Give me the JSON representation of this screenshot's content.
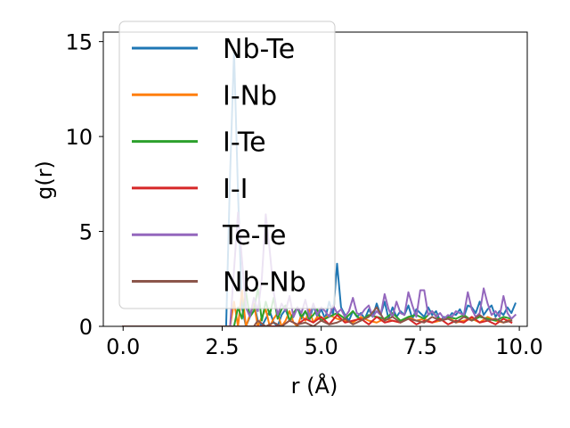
{
  "chart_data": {
    "type": "line",
    "title": "",
    "xlabel": "r (Å)",
    "ylabel": "g(r)",
    "xlim": [
      -0.5,
      10.2
    ],
    "ylim": [
      0,
      15.5
    ],
    "xticks": [
      0.0,
      2.5,
      5.0,
      7.5,
      10.0
    ],
    "xtick_labels": [
      "0.0",
      "2.5",
      "5.0",
      "7.5",
      "10.0"
    ],
    "yticks": [
      0,
      5,
      10,
      15
    ],
    "ytick_labels": [
      "0",
      "5",
      "10",
      "15"
    ],
    "grid": false,
    "legend_position": "upper-left",
    "series": [
      {
        "name": "Nb-Te",
        "color": "#1f77b4",
        "x": [
          0.0,
          2.6,
          2.7,
          2.8,
          2.9,
          3.0,
          3.1,
          3.2,
          3.3,
          3.4,
          3.5,
          3.6,
          3.7,
          3.8,
          3.9,
          4.0,
          4.1,
          4.2,
          4.3,
          4.4,
          4.5,
          4.6,
          4.7,
          4.8,
          4.9,
          5.0,
          5.1,
          5.2,
          5.3,
          5.4,
          5.5,
          5.6,
          5.7,
          5.8,
          5.9,
          6.0,
          6.1,
          6.2,
          6.3,
          6.4,
          6.5,
          6.6,
          6.7,
          6.8,
          6.9,
          7.0,
          7.1,
          7.2,
          7.3,
          7.4,
          7.5,
          7.6,
          7.7,
          7.8,
          7.9,
          8.0,
          8.1,
          8.2,
          8.3,
          8.4,
          8.5,
          8.6,
          8.7,
          8.8,
          8.9,
          9.0,
          9.1,
          9.2,
          9.3,
          9.4,
          9.5,
          9.6,
          9.7,
          9.8,
          9.9
        ],
        "y": [
          0.0,
          0.0,
          8.0,
          14.5,
          7.0,
          1.0,
          0.0,
          0.5,
          1.2,
          0.3,
          0.0,
          0.4,
          0.8,
          0.2,
          0.0,
          0.6,
          0.9,
          0.3,
          0.5,
          1.0,
          0.4,
          0.8,
          0.3,
          1.1,
          0.5,
          0.9,
          0.4,
          1.3,
          0.6,
          3.3,
          1.0,
          0.6,
          0.3,
          0.8,
          0.5,
          0.7,
          0.4,
          0.9,
          0.5,
          1.2,
          0.6,
          1.3,
          0.4,
          1.0,
          0.5,
          0.8,
          0.6,
          1.1,
          0.4,
          0.9,
          0.7,
          0.5,
          1.0,
          0.6,
          0.8,
          0.3,
          0.5,
          0.4,
          0.7,
          0.6,
          0.9,
          0.5,
          1.1,
          1.0,
          0.7,
          1.3,
          0.6,
          0.9,
          1.1,
          0.5,
          0.8,
          0.6,
          1.0,
          0.7,
          1.2
        ]
      },
      {
        "name": "I-Nb",
        "color": "#ff7f0e",
        "x": [
          0.0,
          2.7,
          2.8,
          2.9,
          3.0,
          3.1,
          3.2,
          3.3,
          3.4,
          3.5,
          3.6,
          3.7,
          3.8,
          3.9,
          4.0,
          4.1,
          4.2,
          4.3,
          4.4,
          4.5,
          4.6,
          4.7,
          4.8,
          4.9,
          5.0,
          5.2,
          5.4,
          5.6,
          5.8,
          6.0,
          6.2,
          6.4,
          6.6,
          6.8,
          7.0,
          7.2,
          7.4,
          7.6,
          7.8,
          8.0,
          8.2,
          8.4,
          8.6,
          8.8,
          9.0,
          9.2,
          9.4,
          9.6,
          9.8
        ],
        "y": [
          0.0,
          0.0,
          1.3,
          0.0,
          1.9,
          0.0,
          0.6,
          1.2,
          0.0,
          0.5,
          0.9,
          0.0,
          0.4,
          0.7,
          0.0,
          0.3,
          0.8,
          0.2,
          0.0,
          0.6,
          0.3,
          0.9,
          0.2,
          0.5,
          0.3,
          0.6,
          0.4,
          0.3,
          0.2,
          0.5,
          0.3,
          0.2,
          0.4,
          0.3,
          0.2,
          0.5,
          0.3,
          0.4,
          0.2,
          0.3,
          0.5,
          0.2,
          0.3,
          0.4,
          0.2,
          0.5,
          0.3,
          0.2,
          0.4
        ]
      },
      {
        "name": "I-Te",
        "color": "#2ca02c",
        "x": [
          0.0,
          2.8,
          2.9,
          3.0,
          3.1,
          3.2,
          3.3,
          3.4,
          3.5,
          3.6,
          3.7,
          3.8,
          3.9,
          4.0,
          4.1,
          4.2,
          4.3,
          4.4,
          4.5,
          4.6,
          4.7,
          4.8,
          4.9,
          5.0,
          5.2,
          5.4,
          5.6,
          5.8,
          6.0,
          6.2,
          6.4,
          6.6,
          6.8,
          7.0,
          7.2,
          7.4,
          7.6,
          7.8,
          8.0,
          8.2,
          8.4,
          8.6,
          8.8,
          9.0,
          9.2,
          9.4,
          9.6,
          9.8
        ],
        "y": [
          0.0,
          0.0,
          1.0,
          0.4,
          1.8,
          0.5,
          0.8,
          2.0,
          0.3,
          1.3,
          0.6,
          1.5,
          0.4,
          0.9,
          1.1,
          0.3,
          0.7,
          1.0,
          0.5,
          0.8,
          0.4,
          0.6,
          0.9,
          0.3,
          0.5,
          0.7,
          0.4,
          0.8,
          0.3,
          0.6,
          0.5,
          0.4,
          0.7,
          0.3,
          0.5,
          0.6,
          0.4,
          0.8,
          0.3,
          0.5,
          0.4,
          0.6,
          0.3,
          0.5,
          0.4,
          0.3,
          0.5,
          0.4
        ]
      },
      {
        "name": "I-I",
        "color": "#d62728",
        "x": [
          0.0,
          4.0,
          4.2,
          4.4,
          4.6,
          4.8,
          5.0,
          5.2,
          5.4,
          5.6,
          5.8,
          6.0,
          6.2,
          6.4,
          6.6,
          6.8,
          7.0,
          7.2,
          7.4,
          7.6,
          7.8,
          8.0,
          8.2,
          8.4,
          8.6,
          8.8,
          9.0,
          9.2,
          9.4,
          9.6,
          9.8
        ],
        "y": [
          0.0,
          0.0,
          0.3,
          0.1,
          0.4,
          0.2,
          0.5,
          0.1,
          0.6,
          0.2,
          0.3,
          0.4,
          0.1,
          0.5,
          0.2,
          0.3,
          0.2,
          0.4,
          0.1,
          0.3,
          0.2,
          0.4,
          0.1,
          0.3,
          0.2,
          0.5,
          0.2,
          0.3,
          0.1,
          0.4,
          0.2
        ]
      },
      {
        "name": "Te-Te",
        "color": "#9467bd",
        "x": [
          0.0,
          2.7,
          2.8,
          2.9,
          3.0,
          3.1,
          3.2,
          3.3,
          3.4,
          3.5,
          3.6,
          3.7,
          3.8,
          3.9,
          4.0,
          4.1,
          4.2,
          4.3,
          4.4,
          4.5,
          4.6,
          4.7,
          4.8,
          4.9,
          5.0,
          5.1,
          5.2,
          5.3,
          5.4,
          5.5,
          5.6,
          5.7,
          5.8,
          5.9,
          6.0,
          6.1,
          6.2,
          6.3,
          6.4,
          6.5,
          6.6,
          6.7,
          6.8,
          6.9,
          7.0,
          7.1,
          7.2,
          7.3,
          7.4,
          7.5,
          7.6,
          7.7,
          7.8,
          7.9,
          8.0,
          8.1,
          8.2,
          8.3,
          8.4,
          8.5,
          8.6,
          8.7,
          8.8,
          8.9,
          9.0,
          9.1,
          9.2,
          9.3,
          9.4,
          9.5,
          9.6,
          9.7,
          9.8,
          9.9
        ],
        "y": [
          0.0,
          0.0,
          3.0,
          6.0,
          3.5,
          1.0,
          0.5,
          1.5,
          0.8,
          2.5,
          5.9,
          4.0,
          1.8,
          0.6,
          1.2,
          0.8,
          1.6,
          0.5,
          1.0,
          0.7,
          1.4,
          0.5,
          1.2,
          0.6,
          1.0,
          0.8,
          0.5,
          1.1,
          0.7,
          0.9,
          0.5,
          0.8,
          1.5,
          0.7,
          0.6,
          0.9,
          1.1,
          0.5,
          0.8,
          0.6,
          1.7,
          0.9,
          0.5,
          1.3,
          0.7,
          0.6,
          1.8,
          1.1,
          0.5,
          1.9,
          1.9,
          0.6,
          0.8,
          0.5,
          0.7,
          0.4,
          0.6,
          0.5,
          0.8,
          0.7,
          0.6,
          1.8,
          0.9,
          0.5,
          0.7,
          2.0,
          1.2,
          0.6,
          0.8,
          0.5,
          1.6,
          0.7,
          0.4,
          0.6
        ]
      },
      {
        "name": "Nb-Nb",
        "color": "#8c564b",
        "x": [
          0.0,
          3.3,
          3.4,
          3.6,
          3.8,
          4.0,
          4.2,
          4.4,
          4.6,
          4.8,
          5.0,
          5.2,
          5.4,
          5.6,
          5.8,
          6.0,
          6.2,
          6.4,
          6.6,
          6.8,
          7.0,
          7.2,
          7.4,
          7.6,
          7.8,
          8.0,
          8.2,
          8.4,
          8.6,
          8.8,
          9.0,
          9.2,
          9.4,
          9.6,
          9.8
        ],
        "y": [
          0.0,
          0.0,
          0.3,
          0.0,
          0.2,
          0.0,
          0.3,
          0.1,
          0.2,
          0.0,
          0.3,
          0.1,
          0.2,
          0.4,
          0.1,
          0.3,
          0.5,
          1.0,
          0.3,
          0.5,
          0.2,
          0.4,
          0.3,
          0.2,
          0.5,
          0.3,
          0.4,
          0.2,
          0.5,
          0.3,
          0.6,
          0.3,
          0.4,
          0.2,
          0.3
        ]
      }
    ]
  }
}
